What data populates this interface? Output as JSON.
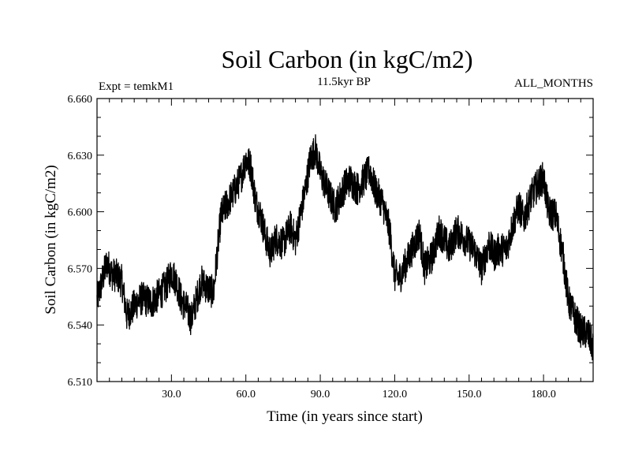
{
  "chart_data": {
    "type": "line",
    "title": "Soil Carbon (in kgC/m2)",
    "subtitle_left": "Expt = temkM1",
    "subtitle_center": "11.5kyr BP",
    "subtitle_right": "ALL_MONTHS",
    "xlabel": "Time (in years since start)",
    "ylabel": "Soil Carbon (in kgC/m2)",
    "xlim": [
      0,
      200
    ],
    "ylim": [
      6.51,
      6.66
    ],
    "xticks": [
      30,
      60,
      90,
      120,
      150,
      180
    ],
    "xtick_labels": [
      "30.0",
      "60.0",
      "90.0",
      "120.0",
      "150.0",
      "180.0"
    ],
    "yticks": [
      6.51,
      6.54,
      6.57,
      6.6,
      6.63,
      6.66
    ],
    "ytick_labels": [
      "6.510",
      "6.540",
      "6.570",
      "6.600",
      "6.630",
      "6.660"
    ],
    "grid": false,
    "series": [
      {
        "name": "Soil Carbon",
        "color": "#000000",
        "noise_amplitude": 0.009,
        "x": [
          0,
          2,
          4,
          6,
          8,
          10,
          12,
          14,
          16,
          18,
          20,
          22,
          25,
          28,
          30,
          32,
          34,
          36,
          38,
          40,
          42,
          45,
          47,
          48,
          50,
          52,
          55,
          58,
          60,
          62,
          64,
          66,
          68,
          70,
          72,
          75,
          78,
          80,
          82,
          84,
          86,
          88,
          90,
          92,
          94,
          96,
          98,
          100,
          102,
          105,
          108,
          110,
          112,
          115,
          118,
          120,
          122,
          125,
          128,
          130,
          132,
          135,
          138,
          140,
          142,
          145,
          148,
          150,
          152,
          155,
          158,
          160,
          162,
          165,
          168,
          170,
          172,
          175,
          178,
          180,
          182,
          185,
          188,
          190,
          192,
          195,
          198,
          200
        ],
        "values": [
          6.553,
          6.563,
          6.573,
          6.567,
          6.566,
          6.563,
          6.545,
          6.548,
          6.552,
          6.554,
          6.553,
          6.552,
          6.556,
          6.561,
          6.568,
          6.563,
          6.553,
          6.549,
          6.543,
          6.553,
          6.563,
          6.559,
          6.557,
          6.572,
          6.598,
          6.603,
          6.61,
          6.618,
          6.628,
          6.624,
          6.605,
          6.598,
          6.586,
          6.578,
          6.586,
          6.583,
          6.592,
          6.585,
          6.598,
          6.612,
          6.628,
          6.633,
          6.621,
          6.614,
          6.608,
          6.602,
          6.608,
          6.614,
          6.617,
          6.612,
          6.618,
          6.622,
          6.612,
          6.605,
          6.59,
          6.566,
          6.565,
          6.574,
          6.583,
          6.589,
          6.57,
          6.576,
          6.59,
          6.585,
          6.58,
          6.59,
          6.586,
          6.583,
          6.58,
          6.57,
          6.583,
          6.577,
          6.58,
          6.58,
          6.595,
          6.603,
          6.596,
          6.608,
          6.615,
          6.618,
          6.6,
          6.598,
          6.575,
          6.553,
          6.546,
          6.537,
          6.535,
          6.528
        ]
      }
    ]
  }
}
